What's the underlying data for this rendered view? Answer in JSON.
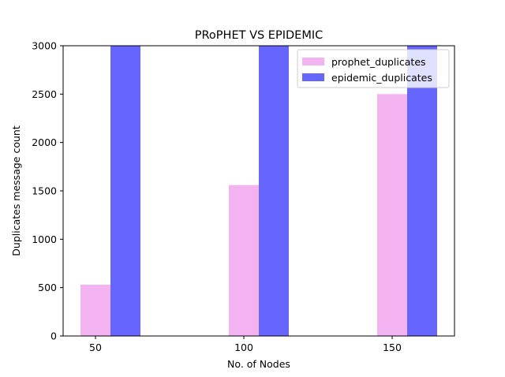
{
  "chart_data": {
    "type": "bar",
    "title": "PRoPHET VS EPIDEMIC",
    "xlabel": "No. of Nodes",
    "ylabel": "Duplicates message count",
    "categories": [
      "50",
      "100",
      "150"
    ],
    "series": [
      {
        "name": "prophet_duplicates",
        "values": [
          530,
          1560,
          2500
        ],
        "color": "#f2b3f0"
      },
      {
        "name": "epidemic_duplicates",
        "values": [
          3000,
          3000,
          3000
        ],
        "color": "#6666ff"
      }
    ],
    "ylim": [
      0,
      3000
    ],
    "yticks": [
      0,
      500,
      1000,
      1500,
      2000,
      2500,
      3000
    ],
    "grid": false,
    "legend_position": "top-right"
  }
}
